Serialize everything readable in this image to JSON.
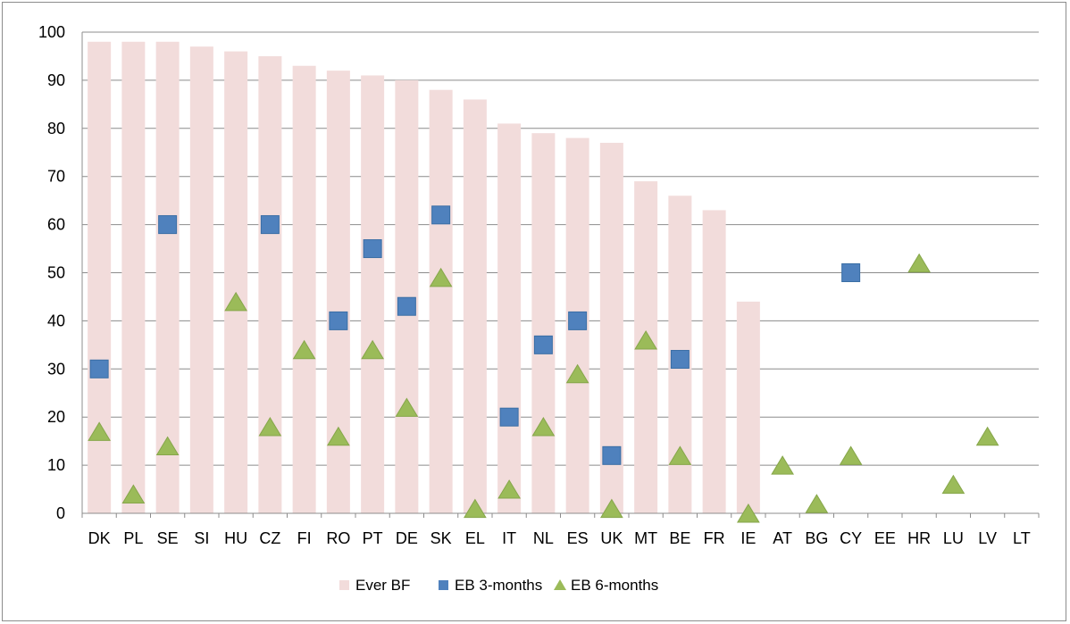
{
  "chart_data": {
    "type": "bar",
    "categories": [
      "DK",
      "PL",
      "SE",
      "SI",
      "HU",
      "CZ",
      "FI",
      "RO",
      "PT",
      "DE",
      "SK",
      "EL",
      "IT",
      "NL",
      "ES",
      "UK",
      "MT",
      "BE",
      "FR",
      "IE",
      "AT",
      "BG",
      "CY",
      "EE",
      "HR",
      "LU",
      "LV",
      "LT"
    ],
    "series": [
      {
        "name": "Ever BF",
        "kind": "bar",
        "color": "#f2dcdb",
        "values": [
          98,
          98,
          98,
          97,
          96,
          95,
          93,
          92,
          91,
          90,
          88,
          86,
          81,
          79,
          78,
          77,
          69,
          66,
          63,
          44,
          null,
          null,
          null,
          null,
          null,
          null,
          null,
          null
        ]
      },
      {
        "name": "EB 3-months",
        "kind": "square-marker",
        "color": "#4f81bd",
        "values": [
          30,
          null,
          60,
          null,
          null,
          60,
          null,
          40,
          55,
          43,
          62,
          null,
          20,
          35,
          40,
          12,
          null,
          32,
          null,
          null,
          null,
          null,
          50,
          null,
          null,
          null,
          null,
          null
        ]
      },
      {
        "name": "EB 6-months",
        "kind": "triangle-marker",
        "color": "#9bbb59",
        "values": [
          17,
          4,
          14,
          null,
          44,
          18,
          34,
          16,
          34,
          22,
          49,
          1,
          5,
          18,
          29,
          1,
          36,
          12,
          null,
          0,
          10,
          2,
          12,
          null,
          52,
          6,
          16,
          null
        ]
      }
    ],
    "ylim": [
      0,
      100
    ],
    "yticks": [
      0,
      10,
      20,
      30,
      40,
      50,
      60,
      70,
      80,
      90,
      100
    ],
    "grid": true,
    "legend_position": "bottom"
  }
}
